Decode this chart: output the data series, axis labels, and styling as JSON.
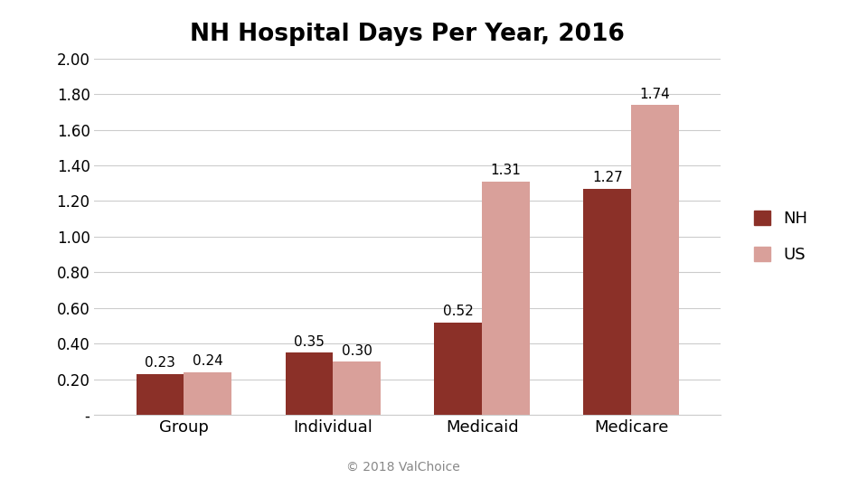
{
  "title": "NH Hospital Days Per Year, 2016",
  "categories": [
    "Group",
    "Individual",
    "Medicaid",
    "Medicare"
  ],
  "nh_values": [
    0.23,
    0.35,
    0.52,
    1.27
  ],
  "us_values": [
    0.24,
    0.3,
    1.31,
    1.74
  ],
  "nh_color": "#8B3028",
  "us_color": "#D9A09A",
  "ylim": [
    0,
    2.0
  ],
  "yticks": [
    0.0,
    0.2,
    0.4,
    0.6,
    0.8,
    1.0,
    1.2,
    1.4,
    1.6,
    1.8,
    2.0
  ],
  "ytick_labels": [
    "-",
    "0.20",
    "0.40",
    "0.60",
    "0.80",
    "1.00",
    "1.20",
    "1.40",
    "1.60",
    "1.80",
    "2.00"
  ],
  "legend_labels": [
    "NH",
    "US"
  ],
  "copyright_text": "© 2018 ValChoice",
  "background_color": "#ffffff",
  "grid_color": "#cccccc",
  "bar_width": 0.32,
  "title_fontsize": 19,
  "tick_fontsize": 12,
  "label_fontsize": 13,
  "annotation_fontsize": 11
}
